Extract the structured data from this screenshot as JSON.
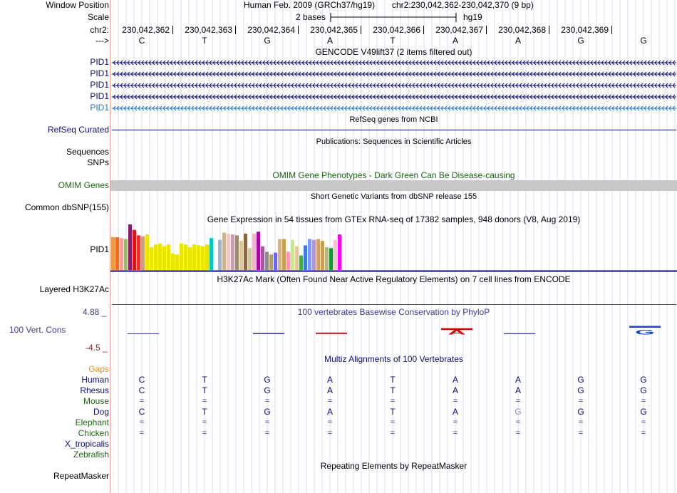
{
  "header": {
    "window_position_label": "Window Position",
    "assembly_text": "Human Feb. 2009 (GRCh37/hg19)",
    "position_text": "chr2:230,042,362-230,042,370 (9 bp)",
    "scale_label": "Scale",
    "scale_text": "2 bases",
    "scale_db": "hg19",
    "chrom_label": "chr2:",
    "strand_label": "--->",
    "coordinates": [
      "230,042,362",
      "230,042,363",
      "230,042,364",
      "230,042,365",
      "230,042,366",
      "230,042,367",
      "230,042,368",
      "230,042,369"
    ],
    "bases": [
      "C",
      "T",
      "G",
      "A",
      "T",
      "A",
      "A",
      "G",
      "G"
    ]
  },
  "gencode": {
    "title": "GENCODE V49lift37 (2 items filtered out)",
    "items": [
      "PID1",
      "PID1",
      "PID1",
      "PID1",
      "PID1"
    ],
    "color": "#0c0c78",
    "last_color": "#1e78c8"
  },
  "refseq": {
    "title": "RefSeq genes from NCBI",
    "label": "RefSeq Curated",
    "color": "#0c0c78"
  },
  "pubs": {
    "title": "Publications: Sequences in Scientific Articles",
    "label_seq": "Sequences",
    "label_snps": "SNPs"
  },
  "omim": {
    "title": "OMIM Gene Phenotypes - Dark Green Can Be Disease-causing",
    "label": "OMIM Genes",
    "color": "#1e6414",
    "label_color": "#1e6414",
    "bar_color": "#c8c8c8"
  },
  "dbsnp": {
    "title": "Short Genetic Variants from dbSNP release 155",
    "label": "Common dbSNP(155)"
  },
  "gtex": {
    "title": "Gene Expression in 54 tissues from GTEx RNA-seq of 17382 samples, 948 donors (V8, Aug 2019)",
    "label": "PID1",
    "values": [
      0.72,
      0.72,
      0.7,
      0.68,
      1.0,
      0.88,
      0.76,
      0.74,
      0.78,
      0.5,
      0.56,
      0.58,
      0.52,
      0.56,
      0.36,
      0.34,
      0.58,
      0.56,
      0.5,
      0.56,
      0.54,
      0.52,
      0.56,
      0.7,
      0.0,
      0.66,
      0.82,
      0.8,
      0.78,
      0.76,
      0.64,
      0.8,
      0.48,
      0.8,
      0.84,
      0.52,
      0.4,
      0.34,
      0.38,
      0.68,
      0.68,
      0.4,
      0.66,
      0.52,
      0.32,
      0.54,
      0.68,
      0.66,
      0.68,
      0.64,
      0.5,
      0.48,
      0.66,
      0.78
    ],
    "colors": [
      "#f09a3c",
      "#f06c28",
      "#f0a0a0",
      "#9bb96c",
      "#8b1a6e",
      "#e0140a",
      "#e63232",
      "#c8a080",
      "#ebe600",
      "#ebe600",
      "#ebe600",
      "#ebe600",
      "#ebe600",
      "#ebe600",
      "#ebe600",
      "#ebe600",
      "#ebe600",
      "#ebe600",
      "#ebe600",
      "#ebe600",
      "#ebe600",
      "#ebe600",
      "#ebe600",
      "#00c8c8",
      "#ffffff",
      "#a0b4c8",
      "#d2b48c",
      "#f0c8c8",
      "#c8a0b4",
      "#9c8c6e",
      "#dcc8a0",
      "#8c6446",
      "#c8c8a0",
      "#f0b4c8",
      "#aa00aa",
      "#a05aa0",
      "#8c8c8c",
      "#b4a064",
      "#6464ff",
      "#d2b48c",
      "#c8a050",
      "#ff96b4",
      "#c8e696",
      "#e6c8a0",
      "#46aa46",
      "#3c78e6",
      "#8296ff",
      "#b496c8",
      "#d2a064",
      "#c8a050",
      "#b4b48c",
      "#149632",
      "#f0c8c8",
      "#ff00ff"
    ],
    "baseline_color": "#0c0c78"
  },
  "h3k27ac": {
    "title": "H3K27Ac Mark (Often Found Near Active Regulatory Elements) on 7 cell lines from ENCODE",
    "label": "Layered H3K27Ac"
  },
  "phylop": {
    "title": "100 vertebrates Basewise Conservation by PhyloP",
    "label": "100 Vert. Cons",
    "max_label": "4.88 _",
    "min_label": "-4.5 _",
    "max_value": 4.88,
    "min_value": -4.5,
    "scores": [
      0.2,
      0.0,
      0.5,
      0.7,
      0.0,
      2.6,
      0.4,
      0.0,
      3.6
    ],
    "color": "#3c3c96",
    "min_color": "#961e1e",
    "logo_letters": [
      "",
      "",
      "",
      "",
      "",
      "A",
      "",
      "",
      "G"
    ],
    "logo_colors": [
      "",
      "",
      "",
      "",
      "",
      "#e00000",
      "",
      "",
      "#1e46c8"
    ]
  },
  "multiz": {
    "title": "Multiz Alignments of 100 Vertebrates",
    "gaps_label": "Gaps",
    "gaps_color": "#e69614",
    "title_color": "#0c0c78",
    "species": [
      {
        "name": "Human",
        "color": "#0c0c78",
        "cells": [
          "C",
          "T",
          "G",
          "A",
          "T",
          "A",
          "A",
          "G",
          "G"
        ]
      },
      {
        "name": "Rhesus",
        "color": "#0c0c78",
        "cells": [
          "C",
          "T",
          "G",
          "A",
          "T",
          "A",
          "A",
          "G",
          "G"
        ]
      },
      {
        "name": "Mouse",
        "color": "#1e6414",
        "cells": [
          "=",
          "=",
          "=",
          "=",
          "=",
          "=",
          "=",
          "=",
          "="
        ]
      },
      {
        "name": "Dog",
        "color": "#0c0c78",
        "cells": [
          "C",
          "T",
          "G",
          "A",
          "T",
          "A",
          "G",
          "G",
          "G"
        ]
      },
      {
        "name": "Elephant",
        "color": "#1e6414",
        "cells": [
          "=",
          "=",
          "=",
          "=",
          "=",
          "=",
          "=",
          "=",
          "="
        ]
      },
      {
        "name": "Chicken",
        "color": "#1e6414",
        "cells": [
          "=",
          "=",
          "=",
          "=",
          "=",
          "=",
          "=",
          "=",
          "="
        ]
      },
      {
        "name": "X_tropicalis",
        "color": "#0c0c78",
        "cells": [
          "",
          "",
          "",
          "",
          "",
          "",
          "",
          "",
          ""
        ]
      },
      {
        "name": "Zebrafish",
        "color": "#1e6414",
        "cells": [
          "",
          "",
          "",
          "",
          "",
          "",
          "",
          "",
          ""
        ]
      }
    ]
  },
  "repeatmasker": {
    "title": "Repeating Elements by RepeatMasker",
    "label": "RepeatMasker"
  }
}
